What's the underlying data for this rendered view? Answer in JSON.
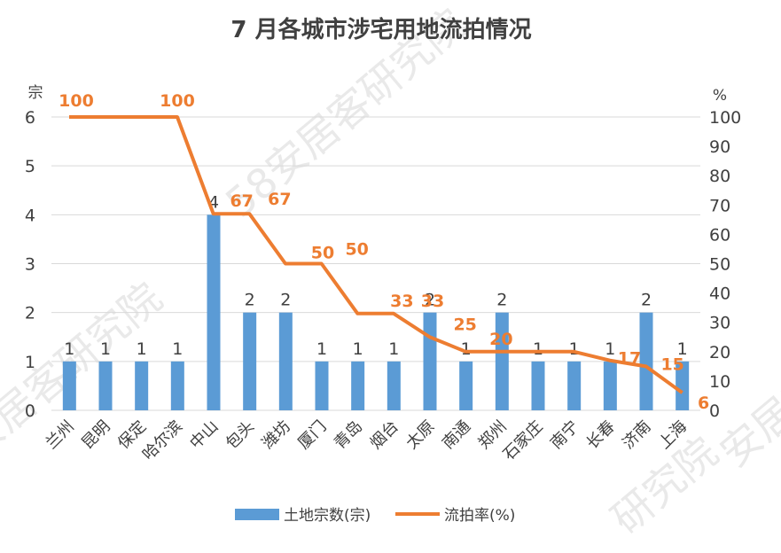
{
  "chart_data": {
    "type": "bar+line",
    "title": "7 月各城市涉宅用地流拍情况",
    "categories": [
      "兰州",
      "昆明",
      "保定",
      "哈尔滨",
      "中山",
      "包头",
      "潍坊",
      "厦门",
      "青岛",
      "烟台",
      "太原",
      "南通",
      "郑州",
      "石家庄",
      "南宁",
      "长春",
      "济南",
      "上海"
    ],
    "series": [
      {
        "name": "土地宗数(宗)",
        "type": "bar",
        "axis": "left",
        "values": [
          1,
          1,
          1,
          1,
          4,
          2,
          2,
          1,
          1,
          1,
          2,
          1,
          2,
          1,
          1,
          1,
          2,
          1
        ],
        "labels": [
          "1",
          "1",
          "1",
          "1",
          "4",
          "2",
          "2",
          "1",
          "1",
          "1",
          "2",
          "1",
          "2",
          "1",
          "1",
          "1",
          "2",
          "1"
        ]
      },
      {
        "name": "流拍率(%)",
        "type": "line",
        "axis": "right",
        "values": [
          100,
          100,
          100,
          100,
          67,
          67,
          50,
          50,
          33,
          33,
          25,
          20,
          20,
          20,
          20,
          17,
          15,
          6
        ],
        "labels": [
          "100",
          "",
          "",
          "100",
          "67",
          "67",
          "50",
          "50",
          "33",
          "33",
          "25",
          "20",
          "",
          "",
          "",
          "17",
          "15",
          "6"
        ]
      }
    ],
    "y_left": {
      "label": "宗",
      "min": 0,
      "max": 6,
      "ticks": [
        "0",
        "1",
        "2",
        "3",
        "4",
        "5",
        "6"
      ]
    },
    "y_right": {
      "label": "%",
      "min": 0,
      "max": 100,
      "ticks": [
        "0",
        "10",
        "20",
        "30",
        "40",
        "50",
        "60",
        "70",
        "80",
        "90",
        "100"
      ]
    },
    "legend": {
      "position": "bottom",
      "items": [
        "土地宗数(宗)",
        "流拍率(%)"
      ]
    },
    "colors": {
      "bar": "#5b9bd5",
      "line": "#ed7d31",
      "grid": "#d9d9d9",
      "text": "#404040"
    }
  },
  "watermarks": [
    "58安居客研究院",
    "安居客研究院",
    "研究院",
    "安居客研"
  ]
}
